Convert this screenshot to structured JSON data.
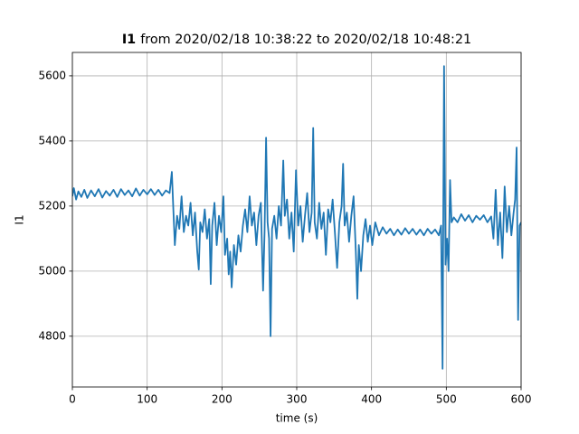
{
  "chart_data": {
    "type": "line",
    "title": {
      "signal": "I1",
      "range": "from 2020/02/18 10:38:22 to 2020/02/18 10:48:21"
    },
    "x_label": "time (s)",
    "y_label": "I1",
    "x": [
      0,
      2,
      5,
      8,
      12,
      16,
      20,
      25,
      30,
      35,
      40,
      45,
      50,
      55,
      60,
      65,
      70,
      75,
      80,
      85,
      90,
      95,
      100,
      105,
      110,
      115,
      120,
      125,
      130,
      133,
      135,
      137,
      140,
      143,
      146,
      149,
      152,
      155,
      158,
      161,
      164,
      167,
      169,
      171,
      174,
      177,
      180,
      183,
      185,
      187,
      190,
      193,
      196,
      199,
      202,
      204,
      207,
      209,
      211,
      213,
      216,
      219,
      222,
      225,
      228,
      231,
      234,
      237,
      240,
      243,
      246,
      249,
      252,
      255,
      257,
      259,
      261,
      263,
      265,
      267,
      270,
      273,
      276,
      279,
      282,
      284,
      287,
      290,
      293,
      296,
      299,
      302,
      305,
      308,
      311,
      314,
      317,
      320,
      322,
      324,
      327,
      330,
      333,
      336,
      339,
      342,
      345,
      348,
      351,
      354,
      357,
      360,
      362,
      364,
      367,
      370,
      373,
      376,
      379,
      381,
      383,
      386,
      389,
      392,
      395,
      398,
      401,
      405,
      410,
      415,
      420,
      425,
      430,
      435,
      440,
      445,
      450,
      455,
      460,
      465,
      470,
      475,
      480,
      485,
      490,
      493,
      495,
      496,
      497,
      499,
      501,
      503,
      505,
      507,
      510,
      515,
      520,
      525,
      530,
      535,
      540,
      545,
      550,
      555,
      560,
      563,
      566,
      569,
      572,
      575,
      578,
      581,
      584,
      587,
      590,
      592,
      594,
      596,
      598,
      600
    ],
    "series": [
      {
        "name": "I1",
        "color": "#1f77b4",
        "values": [
          5230,
          5255,
          5220,
          5245,
          5228,
          5250,
          5225,
          5248,
          5230,
          5252,
          5226,
          5246,
          5232,
          5250,
          5228,
          5252,
          5234,
          5248,
          5230,
          5254,
          5232,
          5250,
          5236,
          5252,
          5234,
          5250,
          5232,
          5248,
          5240,
          5305,
          5190,
          5080,
          5170,
          5130,
          5230,
          5120,
          5170,
          5140,
          5210,
          5110,
          5180,
          5060,
          5005,
          5150,
          5120,
          5190,
          5100,
          5160,
          4960,
          5140,
          5210,
          5080,
          5170,
          5120,
          5230,
          5050,
          5100,
          4990,
          5060,
          4950,
          5080,
          5020,
          5110,
          5060,
          5140,
          5190,
          5120,
          5230,
          5140,
          5180,
          5080,
          5170,
          5210,
          4940,
          5120,
          5410,
          5150,
          5100,
          4800,
          5130,
          5170,
          5100,
          5200,
          5140,
          5340,
          5170,
          5220,
          5100,
          5180,
          5060,
          5310,
          5140,
          5200,
          5090,
          5170,
          5240,
          5120,
          5180,
          5440,
          5150,
          5100,
          5210,
          5130,
          5180,
          5050,
          5190,
          5150,
          5220,
          5120,
          5010,
          5150,
          5200,
          5330,
          5140,
          5180,
          5090,
          5170,
          5230,
          5060,
          4915,
          5080,
          5000,
          5110,
          5160,
          5090,
          5140,
          5080,
          5150,
          5110,
          5135,
          5115,
          5130,
          5110,
          5128,
          5112,
          5132,
          5115,
          5130,
          5112,
          5128,
          5110,
          5130,
          5115,
          5128,
          5110,
          5140,
          4700,
          5200,
          5630,
          5020,
          5100,
          5000,
          5280,
          5150,
          5165,
          5150,
          5175,
          5155,
          5172,
          5150,
          5170,
          5158,
          5172,
          5150,
          5168,
          5100,
          5250,
          5080,
          5180,
          5040,
          5260,
          5120,
          5200,
          5110,
          5180,
          5220,
          5380,
          4850,
          5140,
          5150
        ]
      }
    ],
    "xlim": [
      0,
      600
    ],
    "xticks": [
      0,
      100,
      200,
      300,
      400,
      500,
      600
    ],
    "ylim": [
      4644,
      5672
    ],
    "yticks": [
      4800,
      5000,
      5200,
      5400,
      5600
    ],
    "grid": true
  }
}
